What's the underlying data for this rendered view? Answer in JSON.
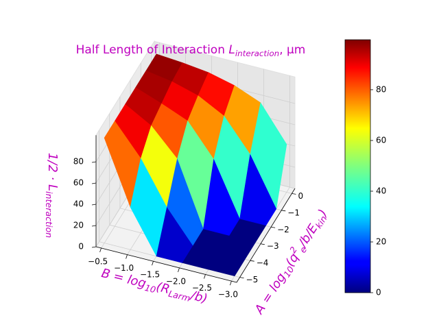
{
  "chart_data": {
    "type": "surface",
    "title_parts": [
      {
        "text": "Half Length of Interaction "
      },
      {
        "math": "L"
      },
      {
        "sub": "interaction"
      },
      {
        "text": ", μm"
      }
    ],
    "xlabel_parts": [
      {
        "math": "B = log"
      },
      {
        "sub": "10"
      },
      {
        "math": "(R"
      },
      {
        "sub": "Larm"
      },
      {
        "math": "/b)"
      }
    ],
    "ylabel_parts": [
      {
        "math": "A = log"
      },
      {
        "sub": "10"
      },
      {
        "math": "(q"
      },
      {
        "sup": "2"
      },
      {
        "sub": "e"
      },
      {
        "math": "/b/E"
      },
      {
        "sub": "kin"
      },
      {
        "math": ")"
      }
    ],
    "zlabel_parts": [
      {
        "math": "1/2 · L"
      },
      {
        "sub": "interaction"
      }
    ],
    "x": [
      -0.5,
      -1.0,
      -1.5,
      -2.0,
      -2.5,
      -3.0
    ],
    "y": [
      -5,
      -4,
      -3,
      -2,
      -1,
      0
    ],
    "z": [
      [
        99,
        40,
        0,
        0,
        0,
        0
      ],
      [
        99,
        70,
        30,
        0,
        0,
        0
      ],
      [
        99,
        85,
        60,
        0,
        0,
        0
      ],
      [
        99,
        90,
        80,
        50,
        0,
        0
      ],
      [
        99,
        95,
        88,
        75,
        45,
        0
      ],
      [
        99,
        97,
        94,
        88,
        78,
        45
      ]
    ],
    "xlim": [
      -0.4,
      -3.1
    ],
    "ylim": [
      -5.3,
      0.3
    ],
    "zlim": [
      0,
      105
    ],
    "xticks": [
      {
        "value": -0.5,
        "label": "−0.5"
      },
      {
        "value": -1.0,
        "label": "−1.0"
      },
      {
        "value": -1.5,
        "label": "−1.5"
      },
      {
        "value": -2.0,
        "label": "−2.0"
      },
      {
        "value": -2.5,
        "label": "−2.5"
      },
      {
        "value": -3.0,
        "label": "−3.0"
      }
    ],
    "yticks": [
      {
        "value": -5,
        "label": "−5"
      },
      {
        "value": -4,
        "label": "−4"
      },
      {
        "value": -3,
        "label": "−3"
      },
      {
        "value": -2,
        "label": "−2"
      },
      {
        "value": -1,
        "label": "−1"
      },
      0
    ],
    "zticks": [
      0,
      20,
      40,
      60,
      80
    ],
    "colormap": "jet",
    "clim": [
      0,
      99.7
    ],
    "colorbar_ticks": [
      0,
      20,
      40,
      60,
      80
    ],
    "label_color": "#bf00bf",
    "grid": true
  }
}
